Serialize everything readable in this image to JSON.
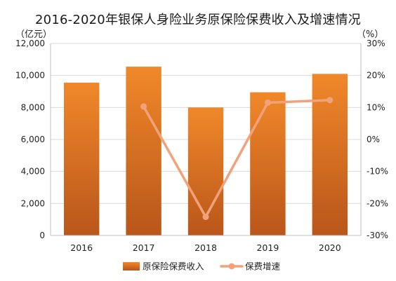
{
  "chart_data": {
    "type": "bar",
    "title": "2016-2020年银保人身险业务原保险保费收入及增速情况",
    "unit_left": "（亿元）",
    "unit_right": "（%）",
    "categories": [
      "2016",
      "2017",
      "2018",
      "2019",
      "2020"
    ],
    "y_left": {
      "ylim": [
        0,
        12000
      ],
      "ticks": [
        "0",
        "2,000",
        "4,000",
        "6,000",
        "8,000",
        "10,000",
        "12,000"
      ],
      "tick_values": [
        0,
        2000,
        4000,
        6000,
        8000,
        10000,
        12000
      ]
    },
    "y_right": {
      "ylim": [
        -30,
        30
      ],
      "ticks": [
        "-30%",
        "-20%",
        "-10%",
        "0%",
        "10%",
        "20%",
        "30%"
      ],
      "tick_values": [
        -30,
        -20,
        -10,
        0,
        10,
        20,
        30
      ]
    },
    "grid": "horizontal",
    "legend_position": "bottom",
    "series": [
      {
        "name": "原保险保费收入",
        "kind": "bar",
        "axis": "left",
        "color": "#E67E22",
        "values": [
          9550,
          10550,
          8000,
          8950,
          10100
        ]
      },
      {
        "name": "保费增速",
        "kind": "line",
        "axis": "right",
        "color": "#F2A27A",
        "values": [
          null,
          10.3,
          -24.2,
          11.5,
          12.3
        ]
      }
    ]
  }
}
